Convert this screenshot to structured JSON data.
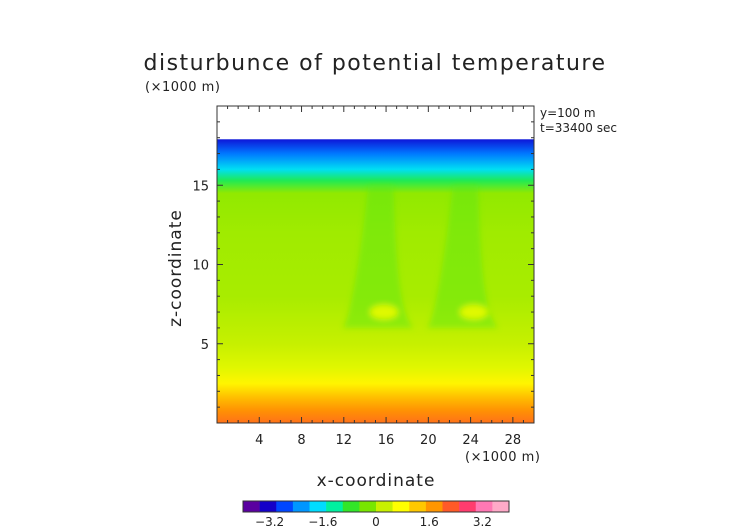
{
  "chart_data": {
    "type": "heatmap",
    "title": "disturbunce of potential temperature",
    "xlabel": "x-coordinate",
    "ylabel": "z-coordinate",
    "x_unit": "(×1000 m)",
    "z_unit": "(×1000 m)",
    "annotations": [
      "y=100 m",
      "t=33400 sec"
    ],
    "xlim": [
      0,
      30
    ],
    "ylim": [
      0,
      20
    ],
    "x_ticks": [
      4,
      8,
      12,
      16,
      20,
      24,
      28
    ],
    "y_ticks": [
      5,
      10,
      15
    ],
    "data_top_z": 17.9,
    "colorbar": {
      "range": [
        -4,
        4
      ],
      "tick_values": [
        -3.2,
        -1.6,
        0,
        1.6,
        3.2
      ],
      "tick_labels": [
        "−3.2",
        "−1.6",
        "0",
        "1.6",
        "3.2"
      ],
      "colors": [
        "#5a00a0",
        "#1400c8",
        "#0046ff",
        "#0096ff",
        "#00dcff",
        "#00f0a0",
        "#32e628",
        "#78e600",
        "#c8f000",
        "#ffff00",
        "#ffc800",
        "#ff9600",
        "#ff5a28",
        "#ff3c6e",
        "#ff78b4",
        "#ffaac8"
      ]
    },
    "z_profile": [
      {
        "z": 0.0,
        "value": 2.2
      },
      {
        "z": 0.8,
        "value": 1.9
      },
      {
        "z": 1.5,
        "value": 1.5
      },
      {
        "z": 2.5,
        "value": 0.9
      },
      {
        "z": 3.5,
        "value": 0.5
      },
      {
        "z": 5.0,
        "value": 0.25
      },
      {
        "z": 6.5,
        "value": 0.15
      },
      {
        "z": 8.0,
        "value": 0.05
      },
      {
        "z": 12.0,
        "value": 0.0
      },
      {
        "z": 14.5,
        "value": -0.1
      },
      {
        "z": 15.3,
        "value": -1.0
      },
      {
        "z": 16.0,
        "value": -1.8
      },
      {
        "z": 17.0,
        "value": -2.6
      },
      {
        "z": 17.9,
        "value": -3.3
      }
    ],
    "features": [
      {
        "type": "plume",
        "x": 15.5,
        "z_top": 15.0,
        "z_bottom": 6.0,
        "value": -0.5
      },
      {
        "type": "plume",
        "x": 23.5,
        "z_top": 15.0,
        "z_bottom": 6.0,
        "value": -0.5
      },
      {
        "type": "warm-blob",
        "x": 15.8,
        "z": 7.0,
        "value": 0.7
      },
      {
        "type": "warm-blob",
        "x": 24.3,
        "z": 7.0,
        "value": 0.7
      }
    ]
  }
}
